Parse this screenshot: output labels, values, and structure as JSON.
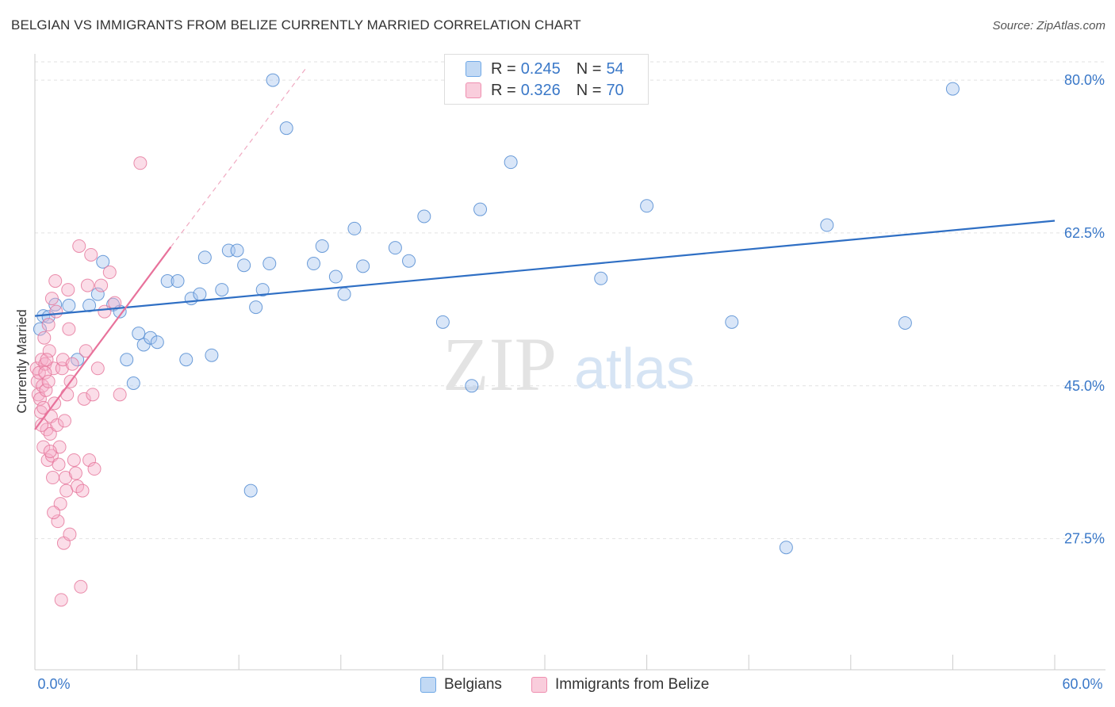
{
  "title": "BELGIAN VS IMMIGRANTS FROM BELIZE CURRENTLY MARRIED CORRELATION CHART",
  "source": "Source: ZipAtlas.com",
  "watermark": {
    "zip": "ZIP",
    "atlas": "atlas"
  },
  "legend": {
    "r_label": "R =",
    "n_label": "N =",
    "rows": [
      {
        "r": "0.245",
        "n": "54",
        "color": "#6fa8e6"
      },
      {
        "r": "0.326",
        "n": "70",
        "color": "#ef8fb0"
      }
    ]
  },
  "chart_data": {
    "type": "scatter",
    "title": "BELGIAN VS IMMIGRANTS FROM BELIZE CURRENTLY MARRIED CORRELATION CHART",
    "xlabel": "",
    "ylabel": "Currently Married",
    "xlim": [
      0,
      60
    ],
    "ylim": [
      12.5,
      83
    ],
    "x_tick_labels": [
      "0.0%",
      "60.0%"
    ],
    "y_ticks": [
      27.5,
      45.0,
      62.5,
      80.0
    ],
    "y_tick_labels": [
      "27.5%",
      "45.0%",
      "62.5%",
      "80.0%"
    ],
    "grid": true,
    "series": [
      {
        "name": "Belgians",
        "color": "#6fa8e6",
        "stroke": "#4a86d0",
        "r": 0.245,
        "n": 54,
        "trend": {
          "x": [
            0.0,
            60.0
          ],
          "y": [
            53.0,
            63.9
          ]
        },
        "points": [
          [
            0.5,
            53
          ],
          [
            0.8,
            52.9
          ],
          [
            1.2,
            54.3
          ],
          [
            2.0,
            54.2
          ],
          [
            2.5,
            48.0
          ],
          [
            3.2,
            54.2
          ],
          [
            3.7,
            55.5
          ],
          [
            4.0,
            59.2
          ],
          [
            4.6,
            54.3
          ],
          [
            5.0,
            53.5
          ],
          [
            5.4,
            48.0
          ],
          [
            5.8,
            45.3
          ],
          [
            6.1,
            51.0
          ],
          [
            6.4,
            49.7
          ],
          [
            6.8,
            50.5
          ],
          [
            7.2,
            50.0
          ],
          [
            7.8,
            57.0
          ],
          [
            8.4,
            57.0
          ],
          [
            8.9,
            48.0
          ],
          [
            9.2,
            55.0
          ],
          [
            9.7,
            55.5
          ],
          [
            10.0,
            59.7
          ],
          [
            10.4,
            48.5
          ],
          [
            11.0,
            56.0
          ],
          [
            11.4,
            60.5
          ],
          [
            11.9,
            60.5
          ],
          [
            12.3,
            58.8
          ],
          [
            12.7,
            33.0
          ],
          [
            13.0,
            54.0
          ],
          [
            13.4,
            56.0
          ],
          [
            13.8,
            59.0
          ],
          [
            14.0,
            80.0
          ],
          [
            14.8,
            74.5
          ],
          [
            16.4,
            59.0
          ],
          [
            16.9,
            61.0
          ],
          [
            17.7,
            57.5
          ],
          [
            18.2,
            55.5
          ],
          [
            18.8,
            63.0
          ],
          [
            19.3,
            58.7
          ],
          [
            21.2,
            60.8
          ],
          [
            22.0,
            59.3
          ],
          [
            22.9,
            64.4
          ],
          [
            24.0,
            52.3
          ],
          [
            25.7,
            45.0
          ],
          [
            26.2,
            65.2
          ],
          [
            28.0,
            70.6
          ],
          [
            33.3,
            57.3
          ],
          [
            36.0,
            65.6
          ],
          [
            41.0,
            52.3
          ],
          [
            44.2,
            26.5
          ],
          [
            46.6,
            63.4
          ],
          [
            51.2,
            52.2
          ],
          [
            54.0,
            79.0
          ],
          [
            0.3,
            51.5
          ]
        ]
      },
      {
        "name": "Immigrants from Belize",
        "color": "#ef8fb0",
        "stroke": "#e57399",
        "r": 0.326,
        "n": 70,
        "trend": {
          "x": [
            0.0,
            8.0
          ],
          "y": [
            40.0,
            60.9
          ],
          "dashed_to": {
            "x": 16.0,
            "y": 81.5
          }
        },
        "points": [
          [
            0.1,
            47
          ],
          [
            0.15,
            45.5
          ],
          [
            0.2,
            44
          ],
          [
            0.25,
            46.5
          ],
          [
            0.3,
            43.5
          ],
          [
            0.35,
            42
          ],
          [
            0.4,
            48
          ],
          [
            0.45,
            45
          ],
          [
            0.5,
            38
          ],
          [
            0.55,
            50.5
          ],
          [
            0.6,
            47.5
          ],
          [
            0.65,
            44.5
          ],
          [
            0.7,
            40
          ],
          [
            0.75,
            36.5
          ],
          [
            0.8,
            52
          ],
          [
            0.85,
            49
          ],
          [
            0.9,
            39.5
          ],
          [
            0.95,
            41.5
          ],
          [
            1.0,
            37
          ],
          [
            1.05,
            34.5
          ],
          [
            1.1,
            47
          ],
          [
            1.15,
            43
          ],
          [
            1.2,
            57
          ],
          [
            1.25,
            53.5
          ],
          [
            1.3,
            40.5
          ],
          [
            1.35,
            29.5
          ],
          [
            1.4,
            36
          ],
          [
            1.45,
            38
          ],
          [
            1.5,
            31.5
          ],
          [
            1.55,
            20.5
          ],
          [
            1.6,
            47
          ],
          [
            1.65,
            48
          ],
          [
            1.7,
            27
          ],
          [
            1.75,
            41
          ],
          [
            1.8,
            34.5
          ],
          [
            1.85,
            33
          ],
          [
            1.9,
            44
          ],
          [
            1.95,
            56
          ],
          [
            2.0,
            51.5
          ],
          [
            2.05,
            28
          ],
          [
            2.1,
            45.5
          ],
          [
            2.2,
            47.5
          ],
          [
            2.3,
            36.5
          ],
          [
            2.4,
            35
          ],
          [
            2.5,
            33.5
          ],
          [
            2.6,
            61
          ],
          [
            2.7,
            22
          ],
          [
            2.8,
            33
          ],
          [
            2.9,
            43.5
          ],
          [
            3.0,
            49
          ],
          [
            3.1,
            56.5
          ],
          [
            3.2,
            36.5
          ],
          [
            3.3,
            60
          ],
          [
            3.4,
            44
          ],
          [
            3.5,
            35.5
          ],
          [
            3.7,
            47
          ],
          [
            3.9,
            56.5
          ],
          [
            4.1,
            53.5
          ],
          [
            4.4,
            58
          ],
          [
            4.7,
            54.5
          ],
          [
            5.0,
            44
          ],
          [
            6.2,
            70.5
          ],
          [
            0.5,
            42.5
          ],
          [
            0.6,
            46.5
          ],
          [
            0.7,
            48
          ],
          [
            0.8,
            45.5
          ],
          [
            0.9,
            37.5
          ],
          [
            1.0,
            55
          ],
          [
            1.1,
            30.5
          ],
          [
            0.4,
            40.5
          ]
        ]
      }
    ]
  }
}
